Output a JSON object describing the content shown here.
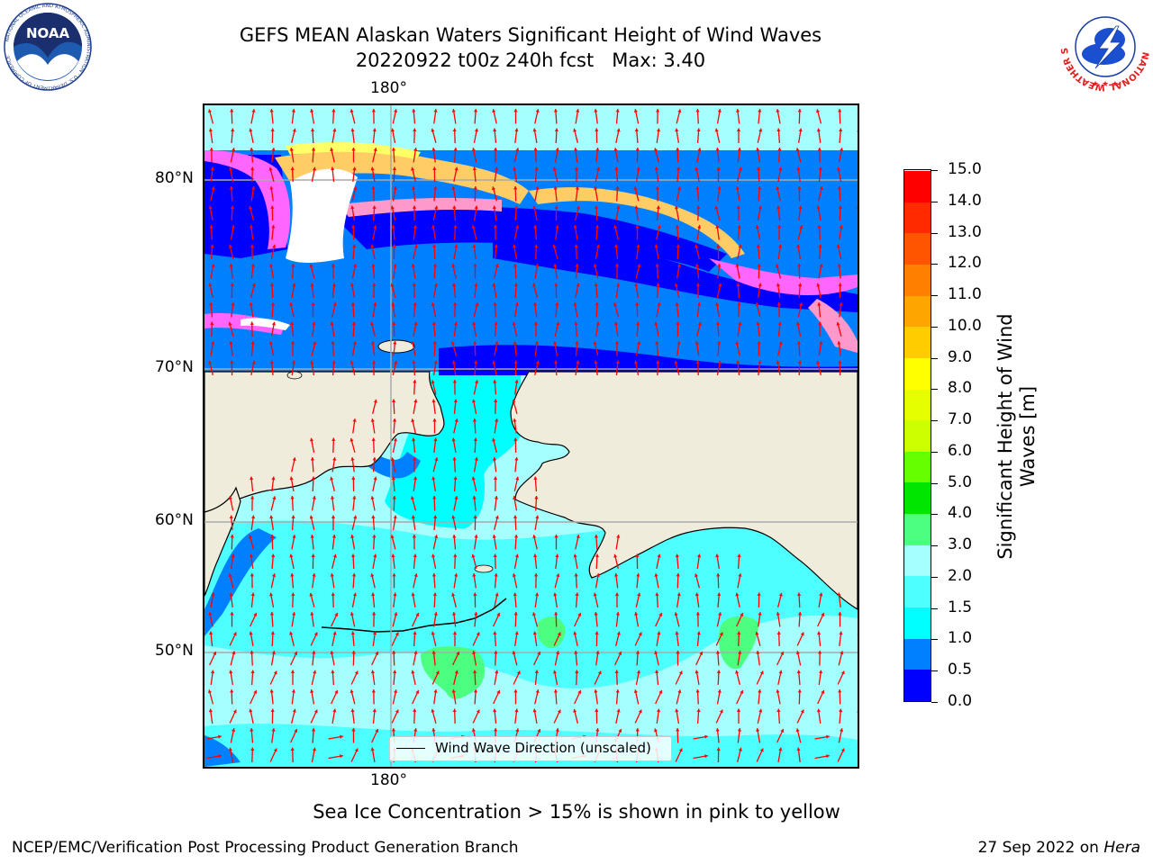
{
  "title": {
    "line1": "GEFS MEAN Alaskan Waters Significant Height of Wind Waves",
    "line2": "20220922 t00z 240h fcst   Max: 3.40"
  },
  "map": {
    "lon_label_top": "180°",
    "lon_label_bottom": "180°",
    "lat_labels": [
      "80°N",
      "70°N",
      "60°N",
      "50°N"
    ],
    "legend_text": "Wind Wave Direction (unscaled)",
    "arrow_color": "#ff0000",
    "land_color": "#efecdc",
    "ice_colors": [
      "#ff66ff",
      "#ff99cc",
      "#ffcc66",
      "#ffff66"
    ]
  },
  "colorbar": {
    "label": "Significant Height of Wind Waves [m]",
    "ticks": [
      "0.0",
      "0.5",
      "1.0",
      "1.5",
      "2.0",
      "3.0",
      "4.0",
      "5.0",
      "6.0",
      "7.0",
      "8.0",
      "9.0",
      "10.0",
      "11.0",
      "12.0",
      "13.0",
      "14.0",
      "15.0"
    ],
    "colors": [
      "#0000ff",
      "#0080ff",
      "#00ffff",
      "#4dffff",
      "#a6ffff",
      "#4dff80",
      "#00e600",
      "#66ff00",
      "#ccff00",
      "#e6ff00",
      "#ffff00",
      "#ffcc00",
      "#ffa500",
      "#ff8000",
      "#ff5500",
      "#ff2a00",
      "#ff0000"
    ]
  },
  "caption": "Sea Ice Concentration > 15% is shown in pink to yellow",
  "footer": {
    "left": "NCEP/EMC/Verification Post Processing Product Generation Branch",
    "right_prefix": "27 Sep 2022 on ",
    "right_host": "Hera"
  },
  "logos": {
    "noaa_text": "NOAA",
    "noaa_ring": "NATIONAL OCEANIC AND ATMOSPHERIC ADMINISTRATION · U.S. DEPARTMENT OF COMMERCE",
    "nws_ring": "NATIONAL WEATHER SERVICE"
  }
}
